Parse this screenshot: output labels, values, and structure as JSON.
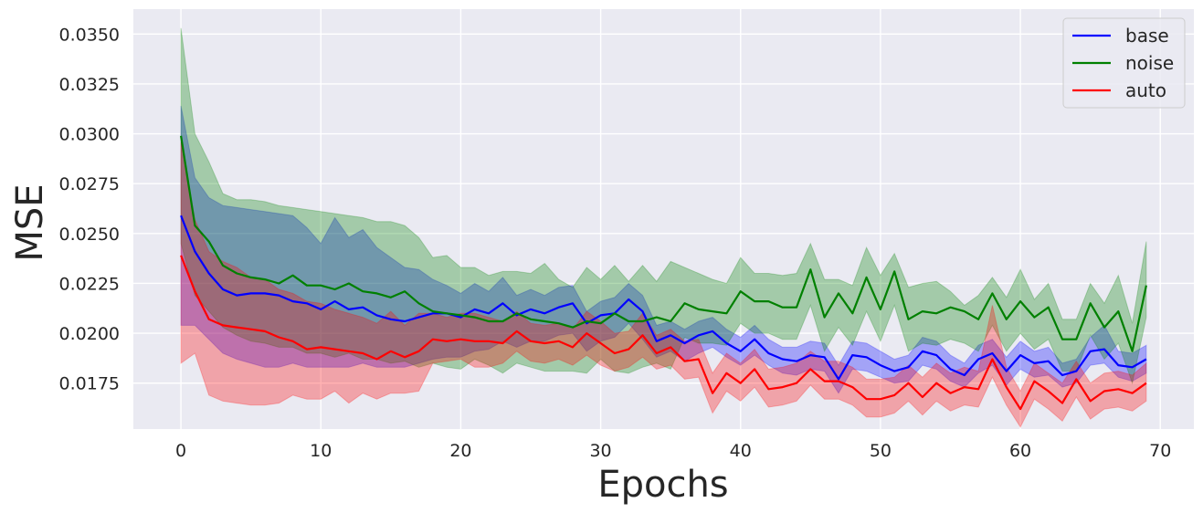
{
  "chart_data": {
    "type": "line",
    "title": "",
    "xlabel": "Epochs",
    "ylabel": "MSE",
    "xlim": [
      -3.4,
      72.4
    ],
    "ylim": [
      0.0152,
      0.03625
    ],
    "xticks": [
      0,
      10,
      20,
      30,
      40,
      50,
      60,
      70
    ],
    "yticks": [
      0.0175,
      0.02,
      0.0225,
      0.025,
      0.0275,
      0.03,
      0.0325,
      0.035
    ],
    "ytick_labels": [
      "0.0175",
      "0.0200",
      "0.0225",
      "0.0250",
      "0.0275",
      "0.0300",
      "0.0325",
      "0.0350"
    ],
    "grid": true,
    "legend_position": "top-right",
    "background": "#eaeaf2",
    "x": [
      0,
      1,
      2,
      3,
      4,
      5,
      6,
      7,
      8,
      9,
      10,
      11,
      12,
      13,
      14,
      15,
      16,
      17,
      18,
      19,
      20,
      21,
      22,
      23,
      24,
      25,
      26,
      27,
      28,
      29,
      30,
      31,
      32,
      33,
      34,
      35,
      36,
      37,
      38,
      39,
      40,
      41,
      42,
      43,
      44,
      45,
      46,
      47,
      48,
      49,
      50,
      51,
      52,
      53,
      54,
      55,
      56,
      57,
      58,
      59,
      60,
      61,
      62,
      63,
      64,
      65,
      66,
      67,
      68,
      69
    ],
    "series": [
      {
        "name": "base",
        "color": "#0000ff",
        "values": [
          0.0259,
          0.0241,
          0.023,
          0.0222,
          0.0219,
          0.022,
          0.022,
          0.0219,
          0.0216,
          0.0215,
          0.0212,
          0.0216,
          0.0212,
          0.0213,
          0.0209,
          0.0207,
          0.0206,
          0.0208,
          0.021,
          0.021,
          0.0208,
          0.0212,
          0.021,
          0.0215,
          0.0209,
          0.0212,
          0.021,
          0.0213,
          0.0215,
          0.0205,
          0.0209,
          0.021,
          0.0217,
          0.0211,
          0.0196,
          0.0199,
          0.0195,
          0.0199,
          0.0201,
          0.0195,
          0.0191,
          0.0197,
          0.019,
          0.0187,
          0.0186,
          0.0189,
          0.0188,
          0.0177,
          0.0189,
          0.0188,
          0.0184,
          0.0181,
          0.0183,
          0.0191,
          0.0189,
          0.0182,
          0.0179,
          0.0187,
          0.019,
          0.0181,
          0.0189,
          0.0185,
          0.0186,
          0.0179,
          0.0181,
          0.0191,
          0.0192,
          0.0184,
          0.0183,
          0.0187
        ],
        "lower": [
          0.0204,
          0.0204,
          0.0197,
          0.019,
          0.0187,
          0.0185,
          0.0183,
          0.0183,
          0.0185,
          0.0183,
          0.0183,
          0.0183,
          0.0183,
          0.0185,
          0.0183,
          0.0183,
          0.0183,
          0.0185,
          0.0187,
          0.0188,
          0.0188,
          0.0191,
          0.0192,
          0.0196,
          0.0193,
          0.0196,
          0.0196,
          0.0199,
          0.02,
          0.0191,
          0.0196,
          0.0198,
          0.0205,
          0.0197,
          0.0188,
          0.0191,
          0.0186,
          0.019,
          0.0193,
          0.0188,
          0.0184,
          0.0189,
          0.0184,
          0.018,
          0.0179,
          0.0182,
          0.0181,
          0.017,
          0.0182,
          0.0181,
          0.0178,
          0.0175,
          0.0176,
          0.0184,
          0.0182,
          0.0176,
          0.0173,
          0.018,
          0.0184,
          0.0174,
          0.0182,
          0.0178,
          0.0179,
          0.0173,
          0.0175,
          0.0184,
          0.0185,
          0.0178,
          0.0176,
          0.018
        ],
        "upper": [
          0.0314,
          0.0278,
          0.0268,
          0.0264,
          0.0263,
          0.0262,
          0.0261,
          0.026,
          0.0259,
          0.0253,
          0.0245,
          0.0258,
          0.0248,
          0.0252,
          0.0243,
          0.0238,
          0.0233,
          0.0232,
          0.0227,
          0.0224,
          0.022,
          0.0225,
          0.0221,
          0.0228,
          0.0219,
          0.0222,
          0.0219,
          0.0223,
          0.0224,
          0.0211,
          0.0216,
          0.0218,
          0.0225,
          0.0219,
          0.0204,
          0.0206,
          0.0202,
          0.0206,
          0.0208,
          0.0202,
          0.0198,
          0.0204,
          0.0197,
          0.0193,
          0.0193,
          0.0196,
          0.0195,
          0.0184,
          0.0196,
          0.0195,
          0.0191,
          0.0187,
          0.0189,
          0.0198,
          0.0196,
          0.0189,
          0.0185,
          0.0194,
          0.0197,
          0.0188,
          0.0196,
          0.0191,
          0.0193,
          0.0185,
          0.0187,
          0.0198,
          0.0204,
          0.0191,
          0.019,
          0.0194
        ]
      },
      {
        "name": "noise",
        "color": "#008000",
        "values": [
          0.0299,
          0.0254,
          0.0246,
          0.0234,
          0.023,
          0.0228,
          0.0227,
          0.0225,
          0.0229,
          0.0224,
          0.0224,
          0.0222,
          0.0225,
          0.0221,
          0.022,
          0.0218,
          0.0221,
          0.0215,
          0.0211,
          0.021,
          0.0209,
          0.0208,
          0.0206,
          0.0206,
          0.021,
          0.0207,
          0.0206,
          0.0205,
          0.0203,
          0.0206,
          0.0205,
          0.021,
          0.0206,
          0.0206,
          0.0208,
          0.0206,
          0.0215,
          0.0212,
          0.0211,
          0.021,
          0.0221,
          0.0216,
          0.0216,
          0.0213,
          0.0213,
          0.0232,
          0.0208,
          0.022,
          0.021,
          0.0228,
          0.0212,
          0.0231,
          0.0207,
          0.0211,
          0.021,
          0.0213,
          0.0211,
          0.0207,
          0.022,
          0.0207,
          0.0216,
          0.0208,
          0.0213,
          0.0197,
          0.0197,
          0.0215,
          0.0203,
          0.0211,
          0.0191,
          0.0224
        ],
        "lower": [
          0.0245,
          0.0219,
          0.0211,
          0.0203,
          0.0199,
          0.0196,
          0.0195,
          0.0193,
          0.0193,
          0.019,
          0.019,
          0.0188,
          0.019,
          0.0187,
          0.0187,
          0.0185,
          0.0186,
          0.0183,
          0.0185,
          0.0183,
          0.0182,
          0.0187,
          0.0184,
          0.018,
          0.0185,
          0.0183,
          0.0181,
          0.0181,
          0.0181,
          0.018,
          0.0187,
          0.0181,
          0.018,
          0.0183,
          0.0185,
          0.0182,
          0.0198,
          0.0195,
          0.0195,
          0.0194,
          0.0205,
          0.02,
          0.02,
          0.0197,
          0.0197,
          0.0214,
          0.0191,
          0.0203,
          0.0194,
          0.0211,
          0.0196,
          0.0214,
          0.0191,
          0.0195,
          0.0194,
          0.0197,
          0.0195,
          0.0191,
          0.0204,
          0.0191,
          0.02,
          0.0192,
          0.0197,
          0.0181,
          0.0181,
          0.0199,
          0.0187,
          0.0195,
          0.0175,
          0.0208
        ],
        "upper": [
          0.0353,
          0.03,
          0.0286,
          0.027,
          0.0267,
          0.0267,
          0.0266,
          0.0264,
          0.0263,
          0.0262,
          0.0261,
          0.026,
          0.0259,
          0.0258,
          0.0256,
          0.0256,
          0.0254,
          0.0248,
          0.0238,
          0.0239,
          0.0233,
          0.0233,
          0.0229,
          0.0231,
          0.0231,
          0.023,
          0.0235,
          0.0227,
          0.0223,
          0.0233,
          0.0227,
          0.0234,
          0.0226,
          0.0234,
          0.0226,
          0.0236,
          0.0233,
          0.023,
          0.0227,
          0.0225,
          0.0238,
          0.023,
          0.023,
          0.0229,
          0.023,
          0.0245,
          0.0227,
          0.0227,
          0.0224,
          0.0243,
          0.0229,
          0.024,
          0.0223,
          0.0225,
          0.0226,
          0.0221,
          0.0214,
          0.0219,
          0.0228,
          0.0218,
          0.0232,
          0.0217,
          0.0225,
          0.0207,
          0.0207,
          0.0225,
          0.0215,
          0.0229,
          0.0205,
          0.0246
        ]
      },
      {
        "name": "auto",
        "color": "#ff0000",
        "values": [
          0.0239,
          0.0221,
          0.0207,
          0.0204,
          0.0203,
          0.0202,
          0.0201,
          0.0198,
          0.0196,
          0.0192,
          0.0193,
          0.0192,
          0.0191,
          0.019,
          0.0187,
          0.0191,
          0.0188,
          0.0191,
          0.0197,
          0.0196,
          0.0197,
          0.0196,
          0.0196,
          0.0195,
          0.0201,
          0.0196,
          0.0195,
          0.0196,
          0.0193,
          0.02,
          0.0195,
          0.019,
          0.0192,
          0.0199,
          0.019,
          0.0193,
          0.0186,
          0.0187,
          0.017,
          0.018,
          0.0175,
          0.0182,
          0.0172,
          0.0173,
          0.0175,
          0.0182,
          0.0176,
          0.0176,
          0.0173,
          0.0167,
          0.0167,
          0.0169,
          0.0175,
          0.0168,
          0.0175,
          0.017,
          0.0173,
          0.0172,
          0.0187,
          0.0173,
          0.0162,
          0.0176,
          0.0171,
          0.0165,
          0.0177,
          0.0166,
          0.0171,
          0.0172,
          0.017,
          0.0175
        ],
        "lower": [
          0.0185,
          0.019,
          0.0169,
          0.0166,
          0.0165,
          0.0164,
          0.0164,
          0.0165,
          0.0169,
          0.0167,
          0.0167,
          0.0171,
          0.0165,
          0.017,
          0.0167,
          0.017,
          0.017,
          0.0171,
          0.0185,
          0.0186,
          0.0187,
          0.0183,
          0.0183,
          0.0185,
          0.0191,
          0.0186,
          0.0185,
          0.0187,
          0.0184,
          0.0189,
          0.0184,
          0.0181,
          0.0183,
          0.0188,
          0.0182,
          0.0184,
          0.0177,
          0.0178,
          0.016,
          0.0171,
          0.0166,
          0.0173,
          0.0163,
          0.0164,
          0.0166,
          0.0174,
          0.0167,
          0.0167,
          0.0164,
          0.0158,
          0.0158,
          0.016,
          0.0166,
          0.0159,
          0.0166,
          0.0161,
          0.0164,
          0.0163,
          0.0178,
          0.0164,
          0.0153,
          0.0167,
          0.0162,
          0.0156,
          0.0168,
          0.0157,
          0.0162,
          0.0163,
          0.0161,
          0.0166
        ],
        "upper": [
          0.0296,
          0.0257,
          0.0241,
          0.0236,
          0.0233,
          0.0228,
          0.0227,
          0.0222,
          0.022,
          0.0216,
          0.0215,
          0.0212,
          0.021,
          0.0208,
          0.0205,
          0.0211,
          0.0204,
          0.021,
          0.021,
          0.0208,
          0.021,
          0.021,
          0.0208,
          0.0206,
          0.0211,
          0.0205,
          0.0204,
          0.0205,
          0.0202,
          0.0211,
          0.0206,
          0.02,
          0.0201,
          0.021,
          0.0199,
          0.0202,
          0.0196,
          0.0197,
          0.018,
          0.019,
          0.0185,
          0.0192,
          0.0182,
          0.0183,
          0.0185,
          0.0191,
          0.0186,
          0.0186,
          0.0183,
          0.0177,
          0.0177,
          0.0178,
          0.0184,
          0.0178,
          0.0185,
          0.018,
          0.0183,
          0.0181,
          0.0214,
          0.0183,
          0.0171,
          0.0185,
          0.018,
          0.0175,
          0.0186,
          0.0175,
          0.018,
          0.0181,
          0.0179,
          0.0185
        ]
      }
    ]
  }
}
